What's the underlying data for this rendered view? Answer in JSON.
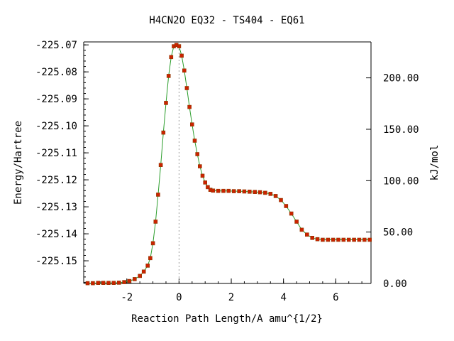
{
  "chart_data": {
    "type": "line",
    "title": "H4CN2O   EQ32 - TS404 - EQ61",
    "xlabel": "Reaction Path Length/A amu^{1/2}",
    "ylabel_left": "Energy/Hartree",
    "ylabel_right": "kJ/mol",
    "xlim": [
      -3.65,
      7.35
    ],
    "ylim": [
      -225.1584,
      -225.0689
    ],
    "x_ticks": [
      -2,
      0,
      2,
      4,
      6
    ],
    "x_tick_labels": [
      "-2",
      "0",
      "2",
      "4",
      "6"
    ],
    "y_left_ticks": [
      -225.07,
      -225.08,
      -225.09,
      -225.1,
      -225.11,
      -225.12,
      -225.13,
      -225.14,
      -225.15
    ],
    "y_left_tick_labels": [
      "-225.07",
      "-225.08",
      "-225.09",
      "-225.10",
      "-225.11",
      "-225.12",
      "-225.13",
      "-225.14",
      "-225.15"
    ],
    "y_right_ticks": [
      0,
      50,
      100,
      150,
      200
    ],
    "y_right_tick_labels": [
      "0.00",
      "50.00",
      "100.00",
      "150.00",
      "200.00"
    ],
    "y_right_zero_energy": -225.1584,
    "kj_per_hartree": 2625.5,
    "ts_x": 0,
    "grid": false,
    "colors": {
      "line": "#2a9d2a",
      "marker_fill": "#cc2200",
      "marker_edge": "#8b3a00",
      "ts_line": "#999999",
      "axis": "#000000"
    },
    "series": [
      {
        "x": [
          -3.5,
          -3.3,
          -3.1,
          -2.9,
          -2.7,
          -2.5,
          -2.3,
          -2.1,
          -1.9,
          -1.7,
          -1.5,
          -1.35,
          -1.2,
          -1.1,
          -1.0,
          -0.9,
          -0.8,
          -0.7,
          -0.6,
          -0.5,
          -0.4,
          -0.3,
          -0.2,
          -0.1,
          0.0,
          0.1,
          0.2,
          0.3,
          0.4,
          0.5,
          0.6,
          0.7,
          0.8,
          0.9,
          1.0,
          1.1,
          1.2,
          1.3,
          1.5,
          1.7,
          1.9,
          2.1,
          2.3,
          2.5,
          2.7,
          2.9,
          3.1,
          3.3,
          3.5,
          3.7,
          3.9,
          4.1,
          4.3,
          4.5,
          4.7,
          4.9,
          5.1,
          5.3,
          5.5,
          5.7,
          5.9,
          6.1,
          6.3,
          6.5,
          6.7,
          6.9,
          7.1,
          7.3
        ],
        "y": [
          -225.1583,
          -225.1583,
          -225.1582,
          -225.1582,
          -225.1582,
          -225.1582,
          -225.1581,
          -225.1579,
          -225.1575,
          -225.1568,
          -225.1556,
          -225.154,
          -225.1518,
          -225.149,
          -225.1435,
          -225.1355,
          -225.1255,
          -225.1145,
          -225.1025,
          -225.0915,
          -225.0815,
          -225.0745,
          -225.0705,
          -225.07,
          -225.0705,
          -225.074,
          -225.0795,
          -225.086,
          -225.093,
          -225.0995,
          -225.1055,
          -225.1105,
          -225.115,
          -225.1185,
          -225.121,
          -225.1227,
          -225.1237,
          -225.124,
          -225.1241,
          -225.1241,
          -225.1241,
          -225.1242,
          -225.1242,
          -225.1243,
          -225.1244,
          -225.1245,
          -225.1246,
          -225.1248,
          -225.1252,
          -225.126,
          -225.1275,
          -225.1297,
          -225.1325,
          -225.1355,
          -225.1385,
          -225.1403,
          -225.1415,
          -225.142,
          -225.1422,
          -225.1422,
          -225.1422,
          -225.1422,
          -225.1422,
          -225.1422,
          -225.1422,
          -225.1422,
          -225.1422,
          -225.1422
        ]
      }
    ]
  }
}
